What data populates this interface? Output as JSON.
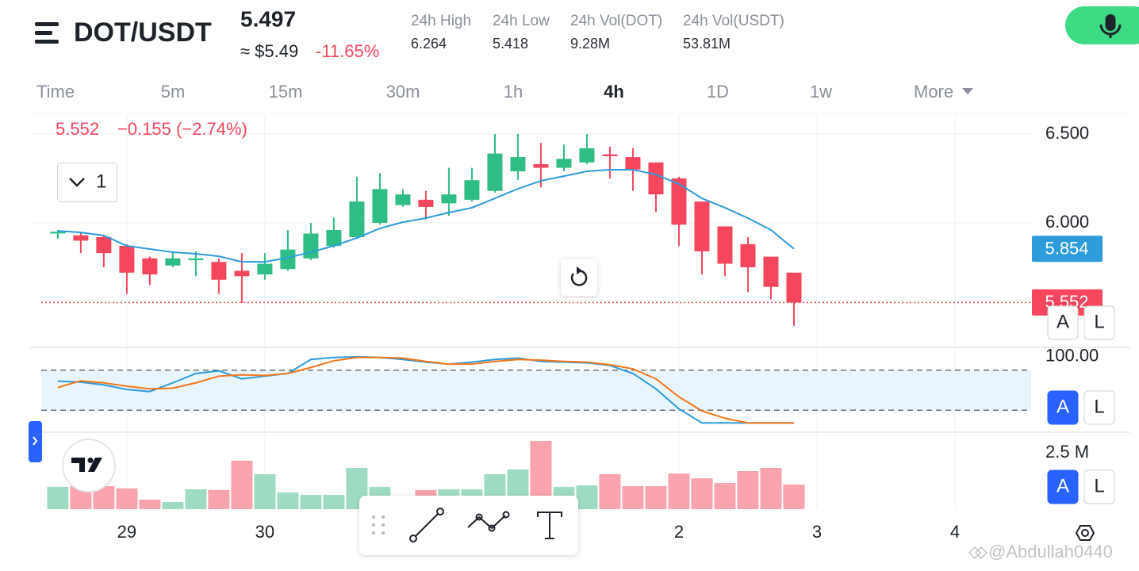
{
  "header": {
    "symbol": "DOT/USDT",
    "price": "5.497",
    "approx": "≈ $5.49",
    "change": "-11.65%",
    "stats": [
      {
        "label": "24h High",
        "value": "6.264"
      },
      {
        "label": "24h Low",
        "value": "5.418"
      },
      {
        "label": "24h Vol(DOT)",
        "value": "9.28M"
      },
      {
        "label": "24h Vol(USDT)",
        "value": "53.81M"
      }
    ]
  },
  "timeframes": [
    "Time",
    "5m",
    "15m",
    "30m",
    "1h",
    "4h",
    "1D",
    "1w",
    "More"
  ],
  "active_timeframe": "4h",
  "overlay": {
    "price": "5.552",
    "change": "−0.155 (−2.74%)"
  },
  "pane_button": "1",
  "scale_buttons": [
    "A",
    "L"
  ],
  "watermark": "@Abdullah0440",
  "chart_data": [
    {
      "type": "candlestick",
      "x": [
        -3,
        -2,
        -1,
        0,
        1,
        2,
        3,
        4,
        5,
        6,
        7,
        8,
        9,
        10,
        11,
        12,
        13,
        14,
        15,
        16,
        17,
        18,
        19,
        20,
        21,
        22,
        23,
        24,
        25,
        26,
        27,
        28,
        29
      ],
      "open": [
        5.94,
        5.93,
        5.92,
        5.87,
        5.8,
        5.76,
        5.79,
        5.78,
        5.73,
        5.71,
        5.74,
        5.8,
        5.87,
        5.92,
        6.0,
        6.1,
        6.13,
        6.11,
        6.13,
        6.18,
        6.29,
        6.33,
        6.31,
        6.34,
        6.385,
        6.37,
        6.34,
        6.25,
        6.12,
        5.98,
        5.88,
        5.81,
        5.72
      ],
      "high": [
        5.96,
        5.95,
        5.93,
        5.88,
        5.81,
        5.84,
        5.84,
        5.8,
        5.83,
        5.83,
        5.96,
        6.0,
        6.03,
        6.26,
        6.28,
        6.19,
        6.18,
        6.31,
        6.31,
        6.5,
        6.5,
        6.45,
        6.44,
        6.5,
        6.43,
        6.42,
        6.34,
        6.26,
        6.12,
        5.98,
        5.92,
        5.81,
        5.72
      ],
      "low": [
        5.91,
        5.83,
        5.75,
        5.6,
        5.65,
        5.75,
        5.7,
        5.6,
        5.55,
        5.68,
        5.73,
        5.79,
        5.86,
        5.91,
        5.99,
        6.09,
        6.02,
        6.04,
        6.12,
        6.17,
        6.24,
        6.2,
        6.29,
        6.33,
        6.25,
        6.18,
        6.06,
        5.87,
        5.71,
        5.7,
        5.61,
        5.57,
        5.42
      ],
      "close": [
        5.95,
        5.9,
        5.83,
        5.72,
        5.71,
        5.8,
        5.8,
        5.68,
        5.7,
        5.77,
        5.85,
        5.94,
        5.96,
        6.12,
        6.19,
        6.16,
        6.09,
        6.16,
        6.24,
        6.39,
        6.37,
        6.31,
        6.36,
        6.42,
        6.375,
        6.3,
        6.16,
        5.99,
        5.84,
        5.77,
        5.75,
        5.64,
        5.552
      ],
      "up_color": "#2ebd85",
      "down_color": "#f6465d",
      "ma": {
        "color": "#2d9cdb",
        "values": [
          5.955,
          5.946,
          5.929,
          5.871,
          5.853,
          5.835,
          5.826,
          5.812,
          5.781,
          5.781,
          5.804,
          5.835,
          5.871,
          5.915,
          5.969,
          6.004,
          6.027,
          6.058,
          6.085,
          6.138,
          6.192,
          6.237,
          6.263,
          6.29,
          6.299,
          6.299,
          6.272,
          6.219,
          6.138,
          6.085,
          6.027,
          5.96,
          5.854
        ]
      },
      "xlim": [
        -3.72,
        39.31
      ],
      "ylim": [
        5.304,
        6.607
      ],
      "yticks": [
        {
          "value": 6.5,
          "label": "6.500"
        },
        {
          "value": 6,
          "label": "6.000"
        }
      ]
    },
    {
      "type": "line",
      "x": [
        -3,
        -2,
        -1,
        0,
        1,
        2,
        3,
        4,
        5,
        6,
        7,
        8,
        9,
        10,
        11,
        12,
        13,
        14,
        15,
        16,
        17,
        18,
        19,
        20,
        21,
        22,
        23,
        24,
        25,
        26,
        27,
        28,
        29
      ],
      "series": [
        {
          "color": "#2d9cdb",
          "values": [
            63.5,
            62,
            58,
            51,
            48,
            61,
            75,
            79,
            67,
            71,
            75,
            96,
            99,
            100,
            99,
            96,
            92,
            89,
            92,
            96,
            98,
            93,
            92,
            91,
            87,
            75,
            52,
            22,
            1,
            1,
            1,
            1,
            1
          ]
        },
        {
          "color": "#f5761a",
          "values": [
            54,
            64,
            61,
            56,
            52,
            53,
            61,
            71,
            73,
            72,
            75,
            84,
            94,
            99,
            99,
            98,
            93,
            89,
            89,
            93,
            96,
            95,
            93,
            92,
            88,
            82,
            67,
            40,
            19,
            8,
            1,
            1,
            1
          ]
        }
      ],
      "bands": [
        20,
        80
      ],
      "band_color": "#e3f2fd",
      "xlim": [
        -3.72,
        39.31
      ],
      "ylim": [
        -12.9,
        114.1
      ],
      "yticks": [
        {
          "value": 100,
          "label": "100.00"
        }
      ]
    },
    {
      "type": "bar",
      "x": [
        -3,
        -2,
        -1,
        0,
        1,
        2,
        3,
        4,
        5,
        6,
        7,
        8,
        9,
        10,
        11,
        12,
        13,
        14,
        15,
        16,
        17,
        18,
        19,
        20,
        21,
        22,
        23,
        24,
        25,
        26,
        27,
        28,
        29
      ],
      "values": [
        0.99,
        1.02,
        1.02,
        0.92,
        0.42,
        0.32,
        0.88,
        0.85,
        2.15,
        1.55,
        0.74,
        0.63,
        0.63,
        1.83,
        0.99,
        0.6,
        0.85,
        0.88,
        0.88,
        1.55,
        1.76,
        3.03,
        0.99,
        1.06,
        1.55,
        1.02,
        1.02,
        1.58,
        1.37,
        1.16,
        1.69,
        1.83,
        1.09
      ],
      "up_color": "#9ddcc2",
      "down_color": "#f8a3ae",
      "xlim": [
        -3.72,
        39.31
      ],
      "ylim": [
        0,
        3.345
      ],
      "yticks": [
        {
          "value": 2.5,
          "label": "2.5 M"
        }
      ],
      "xticks": [
        {
          "value": 0,
          "label": "29"
        },
        {
          "value": 6,
          "label": "30"
        },
        {
          "value": 24,
          "label": "2"
        },
        {
          "value": 30,
          "label": "3"
        },
        {
          "value": 36,
          "label": "4"
        }
      ]
    }
  ]
}
